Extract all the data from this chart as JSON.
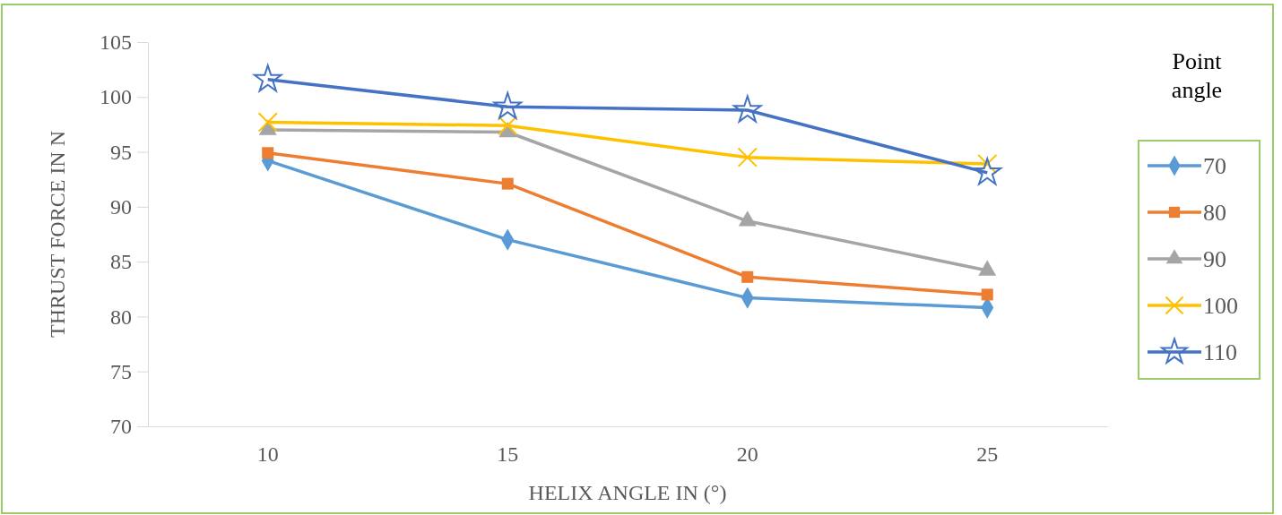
{
  "chart_data": {
    "type": "line",
    "xlabel": "HELIX ANGLE IN (°)",
    "ylabel": "THRUST FORCE IN N",
    "legend_title": "Point angle",
    "categories": [
      "10",
      "15",
      "20",
      "25"
    ],
    "ylim": [
      70,
      105
    ],
    "yticks": [
      70,
      75,
      80,
      85,
      90,
      95,
      100,
      105
    ],
    "grid": false,
    "legend": "right",
    "series": [
      {
        "name": "70",
        "color": "#5b9bd5",
        "marker": "diamond",
        "values": [
          94.2,
          87.0,
          81.7,
          80.8
        ]
      },
      {
        "name": "80",
        "color": "#ed7d31",
        "marker": "square",
        "values": [
          94.9,
          92.1,
          83.6,
          82.0
        ]
      },
      {
        "name": "90",
        "color": "#a5a5a5",
        "marker": "triangle",
        "values": [
          97.0,
          96.8,
          88.7,
          84.2
        ]
      },
      {
        "name": "100",
        "color": "#ffc000",
        "marker": "cross",
        "values": [
          97.7,
          97.4,
          94.5,
          93.9
        ]
      },
      {
        "name": "110",
        "color": "#4472c4",
        "marker": "star",
        "values": [
          101.6,
          99.1,
          98.8,
          93.1
        ]
      }
    ]
  }
}
